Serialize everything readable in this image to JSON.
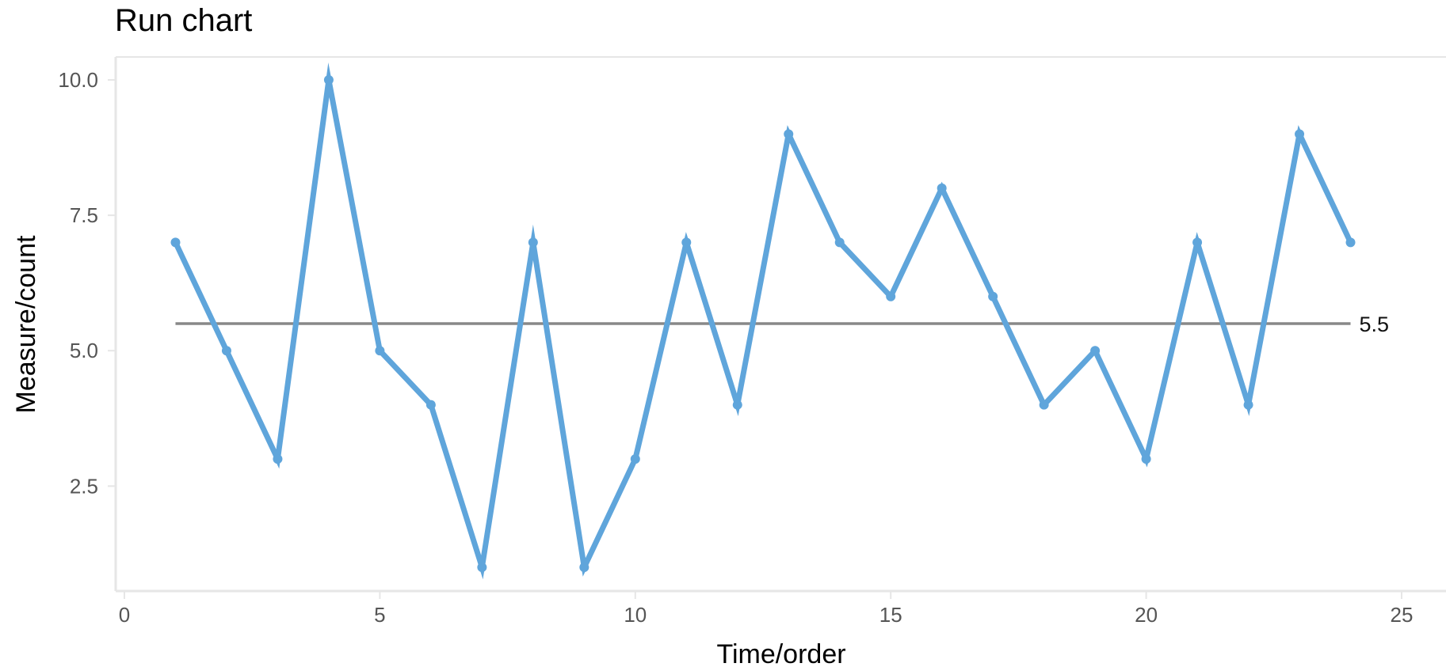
{
  "chart_data": {
    "type": "line",
    "title": "Run chart",
    "xlabel": "Time/order",
    "ylabel": "Measure/count",
    "x": [
      1,
      2,
      3,
      4,
      5,
      6,
      7,
      8,
      9,
      10,
      11,
      12,
      13,
      14,
      15,
      16,
      17,
      18,
      19,
      20,
      21,
      22,
      23,
      24
    ],
    "values": [
      7,
      5,
      3,
      10,
      5,
      4,
      1,
      7,
      1,
      3,
      7,
      4,
      9,
      7,
      6,
      8,
      6,
      4,
      5,
      3,
      7,
      4,
      9,
      7
    ],
    "median": {
      "value": 5.5,
      "label": "5.5"
    },
    "xlim": [
      -0.15,
      25.9
    ],
    "ylim": [
      0.5,
      10.4
    ],
    "xticks": [
      0,
      5,
      10,
      15,
      20,
      25
    ],
    "xtick_labels": [
      "0",
      "5",
      "10",
      "15",
      "20",
      "25"
    ],
    "yticks": [
      2.5,
      5.0,
      7.5,
      10.0
    ],
    "ytick_labels": [
      "2.5",
      "5.0",
      "7.5",
      "10.0"
    ],
    "grid": false,
    "colors": {
      "line": "#5fa5db",
      "median": "#888888",
      "axis": "#e6e6e6",
      "tick_text": "#555555"
    }
  }
}
